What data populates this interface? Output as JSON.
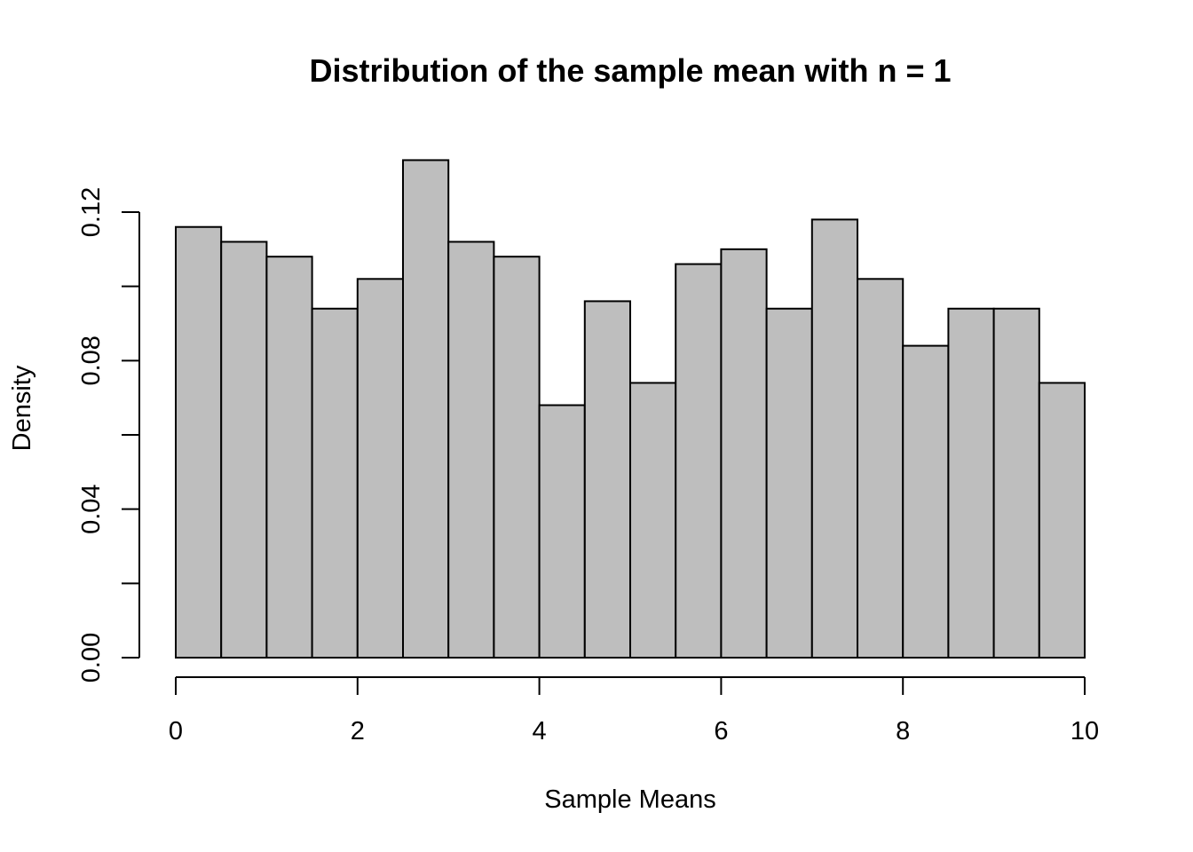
{
  "chart_data": {
    "type": "bar",
    "title": "Distribution of the sample mean with n = 1",
    "xlabel": "Sample Means",
    "ylabel": "Density",
    "bin_edges": [
      0,
      0.5,
      1,
      1.5,
      2,
      2.5,
      3,
      3.5,
      4,
      4.5,
      5,
      5.5,
      6,
      6.5,
      7,
      7.5,
      8,
      8.5,
      9,
      9.5,
      10
    ],
    "values": [
      0.116,
      0.112,
      0.108,
      0.094,
      0.102,
      0.134,
      0.112,
      0.108,
      0.068,
      0.096,
      0.074,
      0.106,
      0.11,
      0.094,
      0.118,
      0.102,
      0.084,
      0.094,
      0.094,
      0.074
    ],
    "xlim": [
      0,
      10
    ],
    "ylim": [
      0,
      0.134
    ],
    "x_ticks": [
      0,
      2,
      4,
      6,
      8,
      10
    ],
    "x_tick_labels": [
      "0",
      "2",
      "4",
      "6",
      "8",
      "10"
    ],
    "y_ticks": [
      0,
      0.02,
      0.04,
      0.06,
      0.08,
      0.1,
      0.12
    ],
    "y_tick_labels": [
      "0.00",
      "",
      "0.04",
      "",
      "0.08",
      "",
      "0.12"
    ],
    "grid": false,
    "legend": "none",
    "colors": {
      "bar_fill": "#bebebe",
      "bar_stroke": "#000000"
    }
  }
}
